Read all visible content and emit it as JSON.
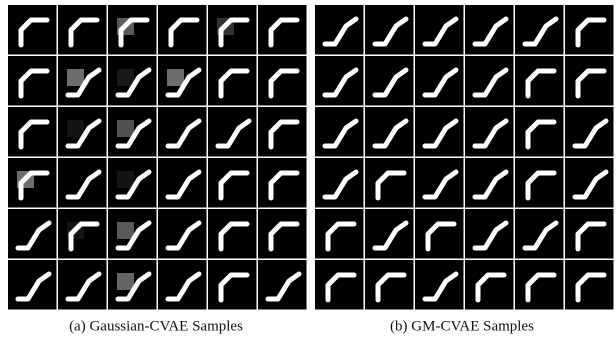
{
  "panels": [
    {
      "caption": "(a) Gaussian-CVAE Samples"
    },
    {
      "caption": "(b) GM-CVAE Samples"
    }
  ]
}
